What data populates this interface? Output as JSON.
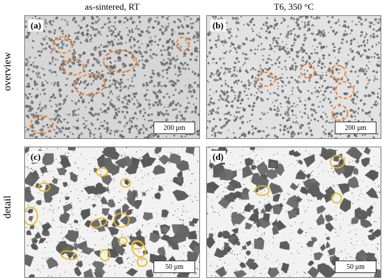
{
  "columns": {
    "left_title": "as-sintered, RT",
    "right_title": "T6, 350 °C"
  },
  "rows": {
    "overview_label": "overview",
    "detail_label": "detail"
  },
  "panels": {
    "a": {
      "letter": "(a)",
      "scale": "200 µm"
    },
    "b": {
      "letter": "(b)",
      "scale": "200 µm"
    },
    "c": {
      "letter": "(c)",
      "scale": "50 µm"
    },
    "d": {
      "letter": "(d)",
      "scale": "50 µm"
    }
  },
  "colors": {
    "matrix": "#dcdcdc",
    "particle": "#6e6e6e",
    "cluster_marker": "#e8823a",
    "pore_marker": "#e6b82e"
  }
}
